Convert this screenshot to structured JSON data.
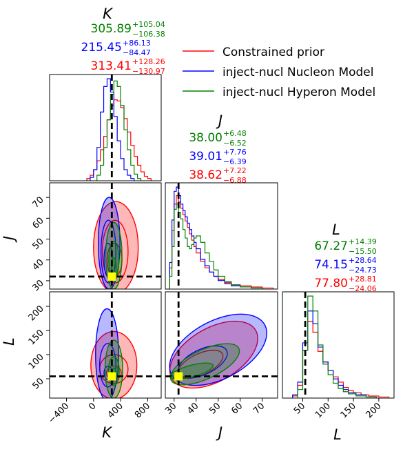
{
  "colors": {
    "prior": "#ff0000",
    "nucleon": "#0000ff",
    "hyperon": "#008000",
    "truth_line": "#000000",
    "truth_marker": "#ffff00"
  },
  "legend": {
    "items": [
      {
        "label": "Constrained prior",
        "color": "#ff0000"
      },
      {
        "label": "inject-nucl Nucleon Model",
        "color": "#0000ff"
      },
      {
        "label": "inject-nucl Hyperon Model",
        "color": "#008000"
      }
    ]
  },
  "titles": {
    "K": {
      "name": "K",
      "rows": [
        {
          "value": "305.89",
          "plus": "+105.04",
          "minus": "−106.38",
          "color": "#008000"
        },
        {
          "value": "215.45",
          "plus": "+86.13",
          "minus": "−84.47",
          "color": "#0000ff"
        },
        {
          "value": "313.41",
          "plus": "+128.26",
          "minus": "−130.97",
          "color": "#ff0000"
        }
      ]
    },
    "J": {
      "name": "J",
      "rows": [
        {
          "value": "38.00",
          "plus": "+6.48",
          "minus": "−6.52",
          "color": "#008000"
        },
        {
          "value": "39.01",
          "plus": "+7.76",
          "minus": "−6.39",
          "color": "#0000ff"
        },
        {
          "value": "38.62",
          "plus": "+7.22",
          "minus": "−6.88",
          "color": "#ff0000"
        }
      ]
    },
    "L": {
      "name": "L",
      "rows": [
        {
          "value": "67.27",
          "plus": "+14.39",
          "minus": "−15.50",
          "color": "#008000"
        },
        {
          "value": "74.15",
          "plus": "+28.64",
          "minus": "−24.73",
          "color": "#0000ff"
        },
        {
          "value": "77.80",
          "plus": "+28.81",
          "minus": "−24.06",
          "color": "#ff0000"
        }
      ]
    }
  },
  "axes": {
    "K": {
      "label": "K",
      "range": [
        -650,
        1000
      ],
      "ticks": [
        -400,
        0,
        400,
        800
      ],
      "tick_labels": [
        "−400",
        "0",
        "400",
        "800"
      ]
    },
    "J": {
      "label": "J",
      "range": [
        26,
        77
      ],
      "ticks": [
        30,
        40,
        50,
        60,
        70
      ],
      "tick_labels": [
        "30",
        "40",
        "50",
        "60",
        "70"
      ]
    },
    "L": {
      "label": "L",
      "range": [
        10,
        230
      ],
      "ticks": [
        50,
        100,
        150,
        200
      ],
      "tick_labels": [
        "50",
        "100",
        "150",
        "200"
      ]
    }
  },
  "chart_data": {
    "type": "corner",
    "parameters": [
      "K",
      "J",
      "L"
    ],
    "injected": {
      "K": 270,
      "J": 32,
      "L": 55
    },
    "series": [
      {
        "name": "Constrained prior",
        "color": "#ff0000",
        "hist": {
          "K": [
            [
              -100,
              2
            ],
            [
              -50,
              5
            ],
            [
              0,
              10
            ],
            [
              50,
              18
            ],
            [
              100,
              28
            ],
            [
              150,
              40
            ],
            [
              200,
              55
            ],
            [
              250,
              68
            ],
            [
              300,
              73
            ],
            [
              350,
              72
            ],
            [
              400,
              66
            ],
            [
              450,
              56
            ],
            [
              500,
              44
            ],
            [
              550,
              32
            ],
            [
              600,
              22
            ],
            [
              650,
              14
            ],
            [
              700,
              8
            ],
            [
              750,
              4
            ],
            [
              800,
              2
            ]
          ],
          "J": [
            [
              28,
              20
            ],
            [
              29,
              55
            ],
            [
              30,
              80
            ],
            [
              31,
              88
            ],
            [
              32,
              82
            ],
            [
              33,
              76
            ],
            [
              34,
              70
            ],
            [
              35,
              64
            ],
            [
              36,
              58
            ],
            [
              37,
              52
            ],
            [
              38,
              46
            ],
            [
              39,
              40
            ],
            [
              40,
              34
            ],
            [
              42,
              26
            ],
            [
              44,
              20
            ],
            [
              46,
              16
            ],
            [
              48,
              12
            ],
            [
              50,
              9
            ],
            [
              53,
              6
            ],
            [
              56,
              4
            ],
            [
              60,
              3
            ],
            [
              65,
              2
            ],
            [
              70,
              1
            ]
          ],
          "L": [
            [
              30,
              2
            ],
            [
              40,
              12
            ],
            [
              50,
              45
            ],
            [
              60,
              72
            ],
            [
              70,
              62
            ],
            [
              80,
              44
            ],
            [
              90,
              34
            ],
            [
              100,
              26
            ],
            [
              110,
              20
            ],
            [
              120,
              15
            ],
            [
              130,
              10
            ],
            [
              140,
              7
            ],
            [
              150,
              5
            ],
            [
              165,
              3
            ],
            [
              180,
              2
            ],
            [
              200,
              1
            ]
          ]
        },
        "contours": {
          "K-J": [
            {
              "c": [
                330,
                46
              ],
              "r": [
                330,
                22
              ],
              "fill": 0.28
            },
            {
              "c": [
                320,
                44
              ],
              "r": [
                190,
                15
              ],
              "fill": 0.0
            },
            {
              "c": [
                310,
                40
              ],
              "r": [
                110,
                8
              ],
              "fill": 0.0
            }
          ],
          "K-L": [
            {
              "c": [
                300,
                78
              ],
              "r": [
                340,
                70
              ],
              "fill": 0.28
            },
            {
              "c": [
                300,
                70
              ],
              "r": [
                210,
                30
              ],
              "fill": 0.0
            },
            {
              "c": [
                300,
                62
              ],
              "r": [
                110,
                14
              ],
              "fill": 0.0
            }
          ],
          "J-L": [
            {
              "c": [
                48,
                100
              ],
              "r": [
                22,
                55
              ],
              "angle": -30,
              "fill": 0.28
            },
            {
              "c": [
                42,
                80
              ],
              "r": [
                11,
                22
              ],
              "angle": -25,
              "fill": 0.0
            }
          ]
        }
      },
      {
        "name": "inject-nucl Nucleon Model",
        "color": "#0000ff",
        "hist": {
          "K": [
            [
              -50,
              3
            ],
            [
              0,
              10
            ],
            [
              50,
              30
            ],
            [
              100,
              62
            ],
            [
              150,
              85
            ],
            [
              200,
              92
            ],
            [
              250,
              80
            ],
            [
              300,
              58
            ],
            [
              350,
              36
            ],
            [
              400,
              20
            ],
            [
              450,
              10
            ],
            [
              500,
              5
            ],
            [
              550,
              2
            ]
          ],
          "J": [
            [
              28,
              25
            ],
            [
              29,
              65
            ],
            [
              30,
              92
            ],
            [
              31,
              96
            ],
            [
              32,
              88
            ],
            [
              33,
              80
            ],
            [
              34,
              74
            ],
            [
              35,
              68
            ],
            [
              36,
              62
            ],
            [
              37,
              56
            ],
            [
              38,
              50
            ],
            [
              39,
              44
            ],
            [
              40,
              38
            ],
            [
              42,
              28
            ],
            [
              44,
              22
            ],
            [
              46,
              16
            ],
            [
              48,
              12
            ],
            [
              50,
              8
            ],
            [
              53,
              5
            ],
            [
              56,
              3
            ],
            [
              60,
              2
            ],
            [
              65,
              1
            ]
          ],
          "L": [
            [
              30,
              3
            ],
            [
              40,
              15
            ],
            [
              50,
              52
            ],
            [
              60,
              82
            ],
            [
              70,
              70
            ],
            [
              80,
              48
            ],
            [
              90,
              34
            ],
            [
              100,
              26
            ],
            [
              110,
              18
            ],
            [
              120,
              12
            ],
            [
              130,
              8
            ],
            [
              140,
              5
            ],
            [
              155,
              3
            ],
            [
              175,
              1
            ]
          ]
        },
        "contours": {
          "K-J": [
            {
              "c": [
                230,
                48
              ],
              "r": [
                160,
                22
              ],
              "fill": 0.28
            },
            {
              "c": [
                220,
                44
              ],
              "r": [
                110,
                15
              ],
              "fill": 0.0
            },
            {
              "c": [
                215,
                40
              ],
              "r": [
                60,
                8
              ],
              "fill": 0.0
            }
          ],
          "K-L": [
            {
              "c": [
                200,
                100
              ],
              "r": [
                170,
                95
              ],
              "fill": 0.28
            },
            {
              "c": [
                210,
                78
              ],
              "r": [
                120,
                45
              ],
              "fill": 0.0
            },
            {
              "c": [
                215,
                62
              ],
              "r": [
                60,
                14
              ],
              "fill": 0.0
            }
          ],
          "J-L": [
            {
              "c": [
                50,
                110
              ],
              "r": [
                24,
                60
              ],
              "angle": -28,
              "fill": 0.28
            },
            {
              "c": [
                43,
                85
              ],
              "r": [
                12,
                26
              ],
              "angle": -25,
              "fill": 0.0
            }
          ]
        }
      },
      {
        "name": "inject-nucl Hyperon Model",
        "color": "#008000",
        "hist": {
          "K": [
            [
              50,
              5
            ],
            [
              100,
              14
            ],
            [
              150,
              30
            ],
            [
              200,
              55
            ],
            [
              250,
              78
            ],
            [
              300,
              90
            ],
            [
              350,
              85
            ],
            [
              400,
              68
            ],
            [
              450,
              46
            ],
            [
              500,
              28
            ],
            [
              550,
              14
            ],
            [
              600,
              6
            ],
            [
              650,
              2
            ]
          ],
          "J": [
            [
              28,
              12
            ],
            [
              29,
              40
            ],
            [
              30,
              75
            ],
            [
              31,
              80
            ],
            [
              32,
              72
            ],
            [
              33,
              66
            ],
            [
              34,
              56
            ],
            [
              35,
              48
            ],
            [
              36,
              40
            ],
            [
              37,
              38
            ],
            [
              38,
              42
            ],
            [
              39,
              48
            ],
            [
              40,
              50
            ],
            [
              42,
              44
            ],
            [
              44,
              34
            ],
            [
              46,
              26
            ],
            [
              48,
              18
            ],
            [
              50,
              12
            ],
            [
              53,
              7
            ],
            [
              56,
              4
            ],
            [
              60,
              2
            ],
            [
              65,
              1
            ]
          ],
          "L": [
            [
              40,
              8
            ],
            [
              50,
              45
            ],
            [
              60,
              96
            ],
            [
              70,
              82
            ],
            [
              80,
              50
            ],
            [
              90,
              32
            ],
            [
              100,
              22
            ],
            [
              110,
              14
            ],
            [
              120,
              9
            ],
            [
              130,
              6
            ],
            [
              140,
              4
            ],
            [
              155,
              2
            ],
            [
              175,
              1
            ]
          ]
        },
        "contours": {
          "K-J": [
            {
              "c": [
                300,
                42
              ],
              "r": [
                120,
                16
              ],
              "fill": 0.28
            },
            {
              "c": [
                300,
                40
              ],
              "r": [
                75,
                9
              ],
              "fill": 0.28
            },
            {
              "c": [
                300,
                36
              ],
              "r": [
                35,
                5
              ],
              "fill": 0.28
            }
          ],
          "K-L": [
            {
              "c": [
                300,
                70
              ],
              "r": [
                130,
                60
              ],
              "fill": 0.28
            },
            {
              "c": [
                300,
                66
              ],
              "r": [
                80,
                30
              ],
              "fill": 0.28
            },
            {
              "c": [
                300,
                60
              ],
              "r": [
                35,
                12
              ],
              "fill": 0.28
            }
          ],
          "J-L": [
            {
              "c": [
                44,
                80
              ],
              "r": [
                17,
                30
              ],
              "angle": -25,
              "fill": 0.28
            },
            {
              "c": [
                38,
                66
              ],
              "r": [
                10,
                12
              ],
              "angle": -15,
              "fill": 0.28
            }
          ]
        }
      }
    ]
  }
}
